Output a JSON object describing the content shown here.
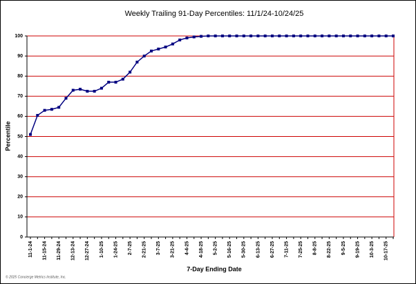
{
  "chart_data": {
    "type": "line",
    "title": "Weekly Trailing 91-Day Percentiles: 11/1/24-10/24/25",
    "x_label": "7-Day Ending Date",
    "y_label": "Percentile",
    "footnote": "© 2025 Concierge Metrics Institute, Inc.",
    "categories": [
      "11-1-24",
      null,
      "11-15-24",
      null,
      "11-29-24",
      null,
      "12-13-24",
      null,
      "12-27-24",
      null,
      "1-10-25",
      null,
      "1-24-25",
      null,
      "2-7-25",
      null,
      "2-21-25",
      null,
      "3-7-25",
      null,
      "3-21-25",
      null,
      "4-4-25",
      null,
      "4-18-25",
      null,
      "5-2-25",
      null,
      "5-16-25",
      null,
      "5-30-25",
      null,
      "6-13-25",
      null,
      "6-27-25",
      null,
      "7-11-25",
      null,
      "7-25-25",
      null,
      "8-8-25",
      null,
      "8-22-25",
      null,
      "9-5-25",
      null,
      "9-19-25",
      null,
      "10-3-25",
      null,
      "10-17-25",
      null
    ],
    "series": [
      {
        "name": "Percentile",
        "color": "#000080",
        "values": [
          51,
          60.5,
          63,
          63.5,
          64.5,
          69,
          73,
          73.5,
          72.5,
          72.5,
          74,
          77,
          77,
          78.5,
          82,
          87,
          90,
          92.5,
          93.5,
          94.5,
          96,
          98,
          99,
          99.5,
          99.8,
          100,
          100,
          100,
          100,
          100,
          100,
          100,
          100,
          100,
          100,
          100,
          100,
          100,
          100,
          100,
          100,
          100,
          100,
          100,
          100,
          100,
          100,
          100,
          100,
          100,
          100,
          100
        ]
      }
    ],
    "ylim": [
      0,
      100
    ],
    "yticks": [
      0,
      10,
      20,
      30,
      40,
      50,
      60,
      70,
      80,
      90,
      100
    ],
    "grid": true,
    "grid_color": "#cc0000"
  }
}
